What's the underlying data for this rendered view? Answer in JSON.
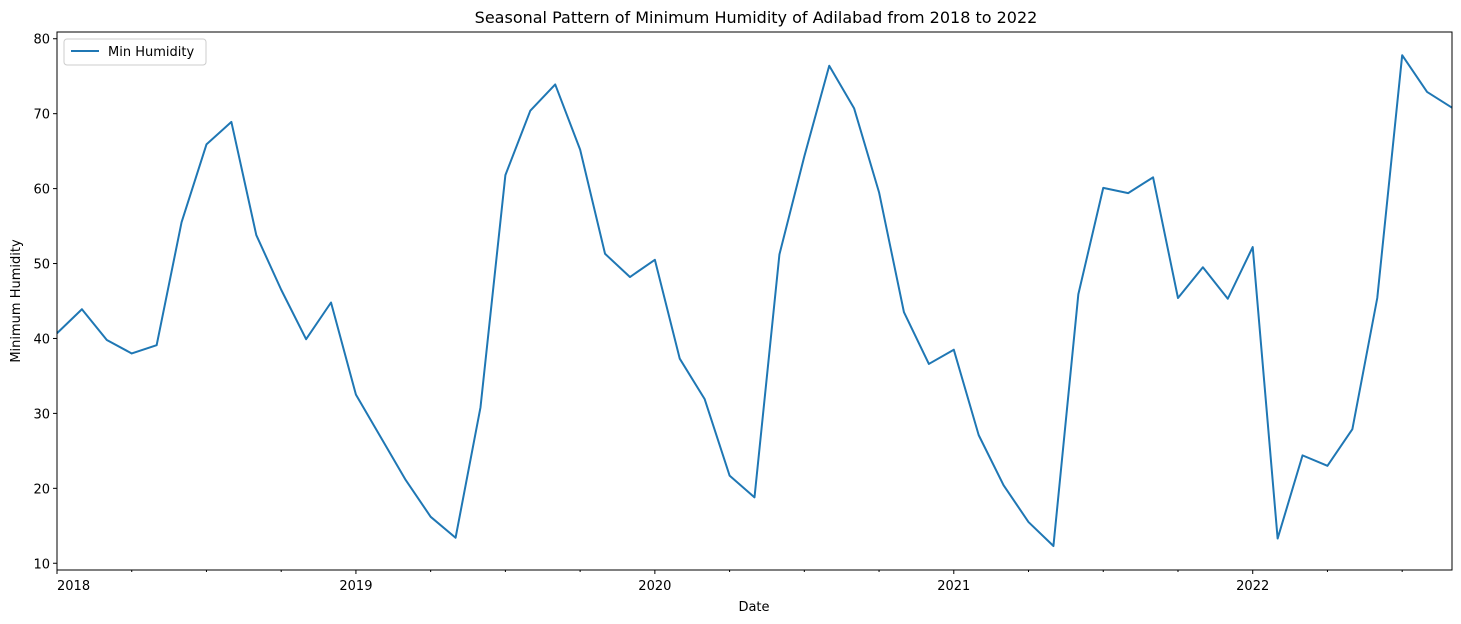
{
  "chart_data": {
    "type": "line",
    "title": "Seasonal Pattern of Minimum Humidity of Adilabad from 2018 to 2022",
    "xlabel": "Date",
    "ylabel": "Minimum Humidity",
    "x": [
      "2018-01",
      "2018-02",
      "2018-03",
      "2018-04",
      "2018-05",
      "2018-06",
      "2018-07",
      "2018-08",
      "2018-09",
      "2018-10",
      "2018-11",
      "2018-12",
      "2019-01",
      "2019-02",
      "2019-03",
      "2019-04",
      "2019-05",
      "2019-06",
      "2019-07",
      "2019-08",
      "2019-09",
      "2019-10",
      "2019-11",
      "2019-12",
      "2020-01",
      "2020-02",
      "2020-03",
      "2020-04",
      "2020-05",
      "2020-06",
      "2020-07",
      "2020-08",
      "2020-09",
      "2020-10",
      "2020-11",
      "2020-12",
      "2021-01",
      "2021-02",
      "2021-03",
      "2021-04",
      "2021-05",
      "2021-06",
      "2021-07",
      "2021-08",
      "2021-09",
      "2021-10",
      "2021-11",
      "2021-12",
      "2022-01",
      "2022-02",
      "2022-03",
      "2022-04",
      "2022-05",
      "2022-06",
      "2022-07",
      "2022-08",
      "2022-09"
    ],
    "series": [
      {
        "name": "Min Humidity",
        "color": "#1f77b4",
        "values": [
          40.7,
          43.9,
          39.8,
          38.0,
          39.1,
          55.5,
          65.9,
          68.9,
          53.8,
          46.5,
          39.9,
          44.8,
          32.5,
          26.8,
          21.1,
          16.2,
          13.4,
          30.8,
          61.8,
          70.4,
          73.9,
          65.2,
          51.3,
          48.2,
          50.5,
          37.3,
          31.9,
          21.7,
          18.8,
          51.2,
          64.3,
          76.4,
          70.7,
          59.5,
          43.5,
          36.6,
          38.5,
          27.1,
          20.4,
          15.5,
          12.3,
          45.9,
          60.1,
          59.4,
          61.5,
          45.4,
          49.5,
          45.3,
          52.2,
          13.3,
          24.4,
          23.0,
          27.9,
          45.4,
          77.8,
          72.9,
          70.8
        ]
      }
    ],
    "x_tick_labels": [
      "2018",
      "2019",
      "2020",
      "2021",
      "2022"
    ],
    "y_ticks": [
      10,
      20,
      30,
      40,
      50,
      60,
      70,
      80
    ],
    "ylim": [
      9.1,
      80.9
    ],
    "xlim": [
      "2018-01",
      "2022-09"
    ],
    "grid": false,
    "legend_position": "upper left"
  }
}
